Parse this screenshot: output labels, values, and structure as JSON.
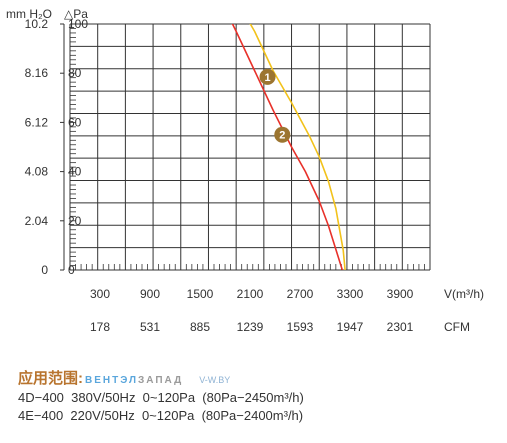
{
  "chart_data": {
    "type": "line",
    "y_axis_labels": {
      "mmH2O": "mm H₂O",
      "Pa": "△Pa"
    },
    "x_axis_labels": {
      "m3h": "V(m³/h)",
      "cfm": "CFM"
    },
    "ylim": [
      0,
      100
    ],
    "xlim": [
      300,
      4200
    ],
    "pa_ticks": [
      "0",
      "20",
      "40",
      "60",
      "80",
      "100"
    ],
    "mmh2o_ticks": [
      "0",
      "2.04",
      "4.08",
      "6.12",
      "8.16",
      "10.2"
    ],
    "m3h_ticks": [
      "300",
      "900",
      "1500",
      "2100",
      "2700",
      "3300",
      "3900"
    ],
    "cfm_ticks": [
      "178",
      "531",
      "885",
      "1239",
      "1593",
      "1947",
      "2301"
    ],
    "grid": true,
    "series": [
      {
        "badge": "1",
        "color": "#f2c21b",
        "x": [
          2100,
          2300,
          2500,
          2700,
          2900,
          3000,
          3100,
          3180,
          3260,
          3280
        ],
        "y": [
          110,
          97,
          81,
          68,
          54,
          46,
          36,
          25,
          8,
          0
        ],
        "label_at": [
          2440,
          78.5
        ]
      },
      {
        "badge": "2",
        "color": "#e8312a",
        "x": [
          1930,
          2100,
          2300,
          2500,
          2700,
          2850,
          3000,
          3100,
          3200,
          3250
        ],
        "y": [
          110,
          97,
          81,
          65,
          50,
          40,
          28,
          18,
          6,
          0
        ],
        "label_at": [
          2600,
          55
        ]
      }
    ],
    "badge_color": "#9c7530"
  },
  "info": {
    "application_label": "应用范围:",
    "brand_part1": "ВЕНТЭЛ",
    "brand_part2": "ЗАПАД",
    "site": "V-W.BY",
    "models": [
      "4D−400  380V/50Hz  0~120Pa  (80Pa−2450m³/h)",
      "4E−400  220V/50Hz  0~120Pa  (80Pa−2400m³/h)"
    ]
  }
}
